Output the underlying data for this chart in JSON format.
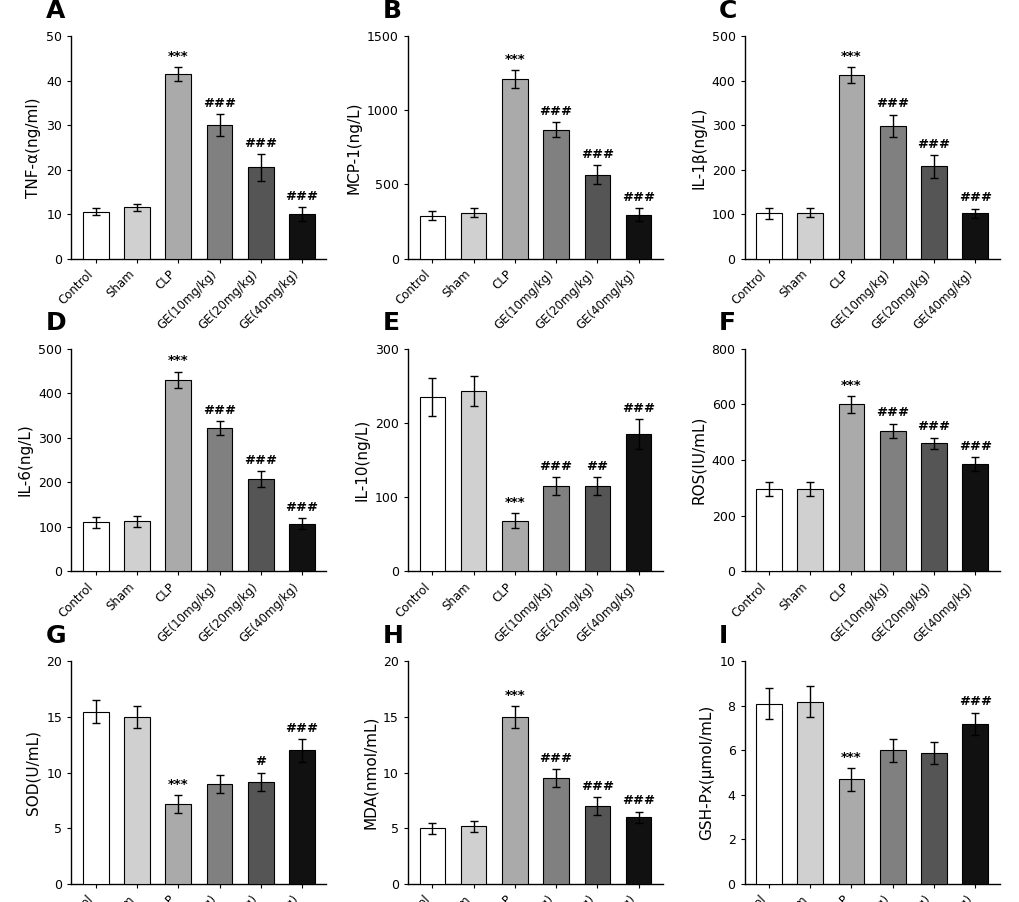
{
  "categories": [
    "Control",
    "Sham",
    "CLP",
    "GE(10mg/kg)",
    "GE(20mg/kg)",
    "GE(40mg/kg)"
  ],
  "bar_colors": [
    "#ffffff",
    "#d0d0d0",
    "#aaaaaa",
    "#808080",
    "#555555",
    "#111111"
  ],
  "bar_edgecolor": "#000000",
  "panels": [
    {
      "label": "A",
      "ylabel": "TNF-α(ng/ml)",
      "ylim": [
        0,
        50
      ],
      "yticks": [
        0,
        10,
        20,
        30,
        40,
        50
      ],
      "values": [
        10.5,
        11.5,
        41.5,
        30.0,
        20.5,
        10.0
      ],
      "errors": [
        0.8,
        0.8,
        1.5,
        2.5,
        3.0,
        1.5
      ],
      "sig_above": [
        "",
        "",
        "***",
        "###",
        "###",
        "###"
      ]
    },
    {
      "label": "B",
      "ylabel": "MCP-1(ng/L)",
      "ylim": [
        0,
        1500
      ],
      "yticks": [
        0,
        500,
        1000,
        1500
      ],
      "values": [
        290,
        310,
        1210,
        870,
        565,
        295
      ],
      "errors": [
        30,
        30,
        60,
        50,
        65,
        45
      ],
      "sig_above": [
        "",
        "",
        "***",
        "###",
        "###",
        "###"
      ]
    },
    {
      "label": "C",
      "ylabel": "IL-1β(ng/L)",
      "ylim": [
        0,
        500
      ],
      "yticks": [
        0,
        100,
        200,
        300,
        400,
        500
      ],
      "values": [
        102,
        103,
        412,
        298,
        207,
        102
      ],
      "errors": [
        12,
        10,
        18,
        25,
        25,
        10
      ],
      "sig_above": [
        "",
        "",
        "***",
        "###",
        "###",
        "###"
      ]
    },
    {
      "label": "D",
      "ylabel": "IL-6(ng/L)",
      "ylim": [
        0,
        500
      ],
      "yticks": [
        0,
        100,
        200,
        300,
        400,
        500
      ],
      "values": [
        110,
        112,
        430,
        322,
        207,
        107
      ],
      "errors": [
        12,
        12,
        18,
        15,
        18,
        12
      ],
      "sig_above": [
        "",
        "",
        "***",
        "###",
        "###",
        "###"
      ]
    },
    {
      "label": "E",
      "ylabel": "IL-10(ng/L)",
      "ylim": [
        0,
        300
      ],
      "yticks": [
        0,
        100,
        200,
        300
      ],
      "values": [
        235,
        243,
        68,
        115,
        115,
        185
      ],
      "errors": [
        25,
        20,
        10,
        12,
        12,
        20
      ],
      "sig_above": [
        "",
        "",
        "***",
        "###",
        "##",
        "###"
      ]
    },
    {
      "label": "F",
      "ylabel": "ROS(IU/mL)",
      "ylim": [
        0,
        800
      ],
      "yticks": [
        0,
        200,
        400,
        600,
        800
      ],
      "values": [
        295,
        295,
        600,
        505,
        460,
        385
      ],
      "errors": [
        25,
        25,
        30,
        25,
        20,
        25
      ],
      "sig_above": [
        "",
        "",
        "***",
        "###",
        "###",
        "###"
      ]
    },
    {
      "label": "G",
      "ylabel": "SOD(U/mL)",
      "ylim": [
        0,
        20
      ],
      "yticks": [
        0,
        5,
        10,
        15,
        20
      ],
      "values": [
        15.5,
        15.0,
        7.2,
        9.0,
        9.2,
        12.0
      ],
      "errors": [
        1.0,
        1.0,
        0.8,
        0.8,
        0.8,
        1.0
      ],
      "sig_above": [
        "",
        "",
        "***",
        "",
        "#",
        "###"
      ]
    },
    {
      "label": "H",
      "ylabel": "MDA(nmol/mL)",
      "ylim": [
        0,
        20
      ],
      "yticks": [
        0,
        5,
        10,
        15,
        20
      ],
      "values": [
        5.0,
        5.2,
        15.0,
        9.5,
        7.0,
        6.0
      ],
      "errors": [
        0.5,
        0.5,
        1.0,
        0.8,
        0.8,
        0.5
      ],
      "sig_above": [
        "",
        "",
        "***",
        "###",
        "###",
        "###"
      ]
    },
    {
      "label": "I",
      "ylabel": "GSH-Px(μmol/mL)",
      "ylim": [
        0,
        10
      ],
      "yticks": [
        0,
        2,
        4,
        6,
        8,
        10
      ],
      "values": [
        8.1,
        8.2,
        4.7,
        6.0,
        5.9,
        7.2
      ],
      "errors": [
        0.7,
        0.7,
        0.5,
        0.5,
        0.5,
        0.5
      ],
      "sig_above": [
        "",
        "",
        "***",
        "",
        "",
        "###"
      ]
    }
  ],
  "label_fontsize": 18,
  "tick_fontsize": 9,
  "ylabel_fontsize": 11,
  "xtick_fontsize": 8.5,
  "sig_fontsize": 9.5,
  "bar_width": 0.62,
  "capsize": 3,
  "figure_bg": "#ffffff"
}
